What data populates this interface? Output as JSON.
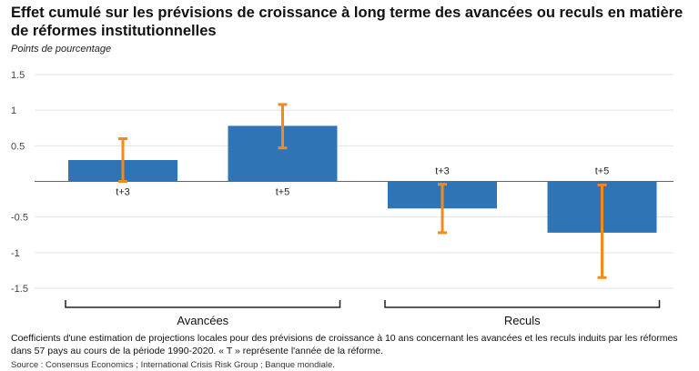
{
  "title": "Effet cumulé sur les prévisions de croissance à long terme des avancées ou reculs en matière de réformes institutionnelles",
  "ylabel": "Points de pourcentage",
  "note": "Coefficients d'une estimation de projections locales pour des prévisions de croissance à 10 ans concernant les avancées et les reculs induits par les réformes dans 57 pays au cours de la période 1990-2020. « T » représente l'année de la réforme.",
  "source": "Source : Consensus Economics ; International Crisis Risk Group ; Banque mondiale.",
  "colors": {
    "bar": "#2f74b5",
    "error": "#f28a1e",
    "grid": "#e2e2e2",
    "axis": "#666666"
  },
  "chart_data": {
    "type": "bar",
    "ylim": [
      -1.5,
      1.5
    ],
    "yticks": [
      1.5,
      1,
      0.5,
      0,
      -0.5,
      -1,
      -1.5
    ],
    "ytick_labels": [
      "1.5",
      "1",
      "0.5",
      "",
      "-0.5",
      "-1",
      "-1.5"
    ],
    "grid": true,
    "groups": [
      {
        "label": "Avancées",
        "start": 0,
        "end": 1
      },
      {
        "label": "Reculs",
        "start": 2,
        "end": 3
      }
    ],
    "categories": [
      "t+3",
      "t+5",
      "t+3",
      "t+5"
    ],
    "values": [
      0.3,
      0.78,
      -0.38,
      -0.72
    ],
    "error_low": [
      0.0,
      0.47,
      -0.72,
      -1.35
    ],
    "error_high": [
      0.6,
      1.08,
      -0.04,
      -0.05
    ]
  }
}
